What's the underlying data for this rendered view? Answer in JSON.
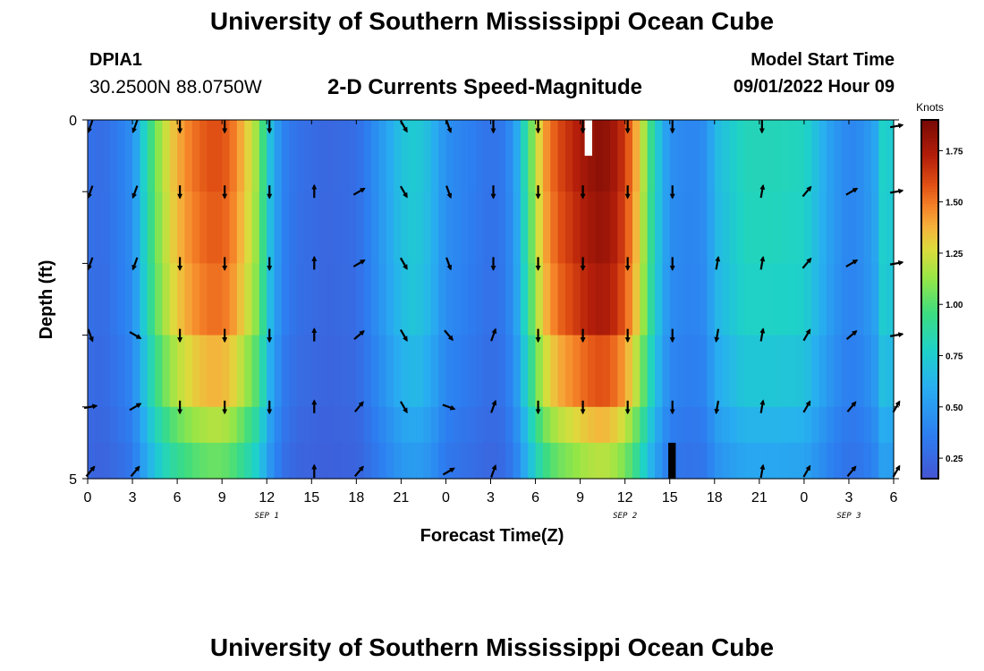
{
  "title_top": "University of Southern Mississippi Ocean Cube",
  "title_bottom": "University of Southern Mississippi Ocean Cube",
  "station": {
    "id": "DPIA1",
    "coords": "30.2500N  88.0750W"
  },
  "model_start": {
    "label": "Model Start Time",
    "value": "09/01/2022 Hour 09"
  },
  "chart_data": {
    "type": "heatmap",
    "title": "2-D Currents Speed-Magnitude",
    "xlabel": "Forecast Time(Z)",
    "ylabel": "Depth (ft)",
    "x_hours": [
      0,
      54
    ],
    "x_ticks": [
      0,
      3,
      6,
      9,
      12,
      15,
      18,
      21,
      24,
      27,
      30,
      33,
      36,
      39,
      42,
      45,
      48,
      51,
      54
    ],
    "x_tick_labels": [
      "0",
      "3",
      "6",
      "9",
      "12",
      "15",
      "18",
      "21",
      "0",
      "3",
      "6",
      "9",
      "12",
      "15",
      "18",
      "21",
      "0",
      "3",
      "6"
    ],
    "y_ticks": [
      0,
      1,
      2,
      3,
      4,
      5
    ],
    "y_tick_labels": [
      "0",
      "",
      "",
      "",
      "",
      "5"
    ],
    "date_labels": [
      {
        "text": "SEP 1",
        "x": 12
      },
      {
        "text": "SEP 2",
        "x": 36
      },
      {
        "text": "SEP 3",
        "x": 51
      }
    ],
    "colorbar": {
      "label": "Knots",
      "min": 0.15,
      "max": 1.9,
      "ticks": [
        0.25,
        0.5,
        0.75,
        1.0,
        1.25,
        1.5,
        1.75
      ],
      "tick_labels": [
        "0.25",
        "0.50",
        "0.75",
        "1.00",
        "1.25",
        "1.50",
        "1.75"
      ]
    },
    "speed_profile": {
      "hours": [
        0,
        1,
        2,
        3,
        3.7,
        4.5,
        5.5,
        6.5,
        7.5,
        8.5,
        9.5,
        10.5,
        11.5,
        12.2,
        13,
        14,
        16,
        18,
        19,
        20,
        21,
        22,
        23,
        24,
        25,
        26,
        27,
        28,
        28.7,
        29.5,
        30.5,
        31.5,
        32.5,
        33.5,
        34.5,
        35.5,
        36.5,
        37.2,
        38,
        39,
        40.5,
        41.5,
        42,
        44,
        46,
        48,
        49,
        50,
        51,
        52,
        53,
        53.5,
        54
      ],
      "speeds": [
        0.3,
        0.28,
        0.35,
        0.45,
        0.75,
        1.05,
        1.3,
        1.45,
        1.55,
        1.6,
        1.55,
        1.35,
        1.1,
        0.7,
        0.4,
        0.3,
        0.25,
        0.28,
        0.4,
        0.55,
        0.7,
        0.75,
        0.65,
        0.45,
        0.4,
        0.35,
        0.3,
        0.35,
        0.55,
        0.95,
        1.4,
        1.6,
        1.7,
        1.8,
        1.85,
        1.75,
        1.5,
        1.2,
        0.8,
        0.45,
        0.4,
        0.45,
        0.65,
        0.82,
        0.82,
        0.8,
        0.65,
        0.5,
        0.4,
        0.45,
        0.6,
        0.95,
        0.55
      ]
    },
    "layer_factors": [
      1.0,
      0.98,
      0.95,
      0.85,
      0.72,
      0.62
    ],
    "arrow_hours": [
      0,
      3,
      6,
      9,
      12,
      15,
      18,
      21,
      24,
      27,
      30,
      33,
      36,
      39,
      42,
      45,
      48,
      51,
      54
    ],
    "arrow_directions_deg": [
      [
        200,
        200,
        180,
        180,
        180,
        null,
        null,
        150,
        160,
        180,
        180,
        180,
        180,
        180,
        null,
        180,
        null,
        null,
        80
      ],
      [
        200,
        200,
        180,
        180,
        180,
        0,
        60,
        150,
        160,
        180,
        180,
        180,
        180,
        180,
        null,
        10,
        40,
        60,
        80
      ],
      [
        200,
        200,
        180,
        180,
        180,
        0,
        60,
        150,
        160,
        180,
        180,
        180,
        180,
        180,
        10,
        10,
        40,
        60,
        80
      ],
      [
        160,
        120,
        180,
        180,
        180,
        0,
        50,
        150,
        140,
        20,
        180,
        180,
        180,
        180,
        190,
        10,
        30,
        50,
        80
      ],
      [
        80,
        60,
        180,
        180,
        180,
        0,
        40,
        150,
        110,
        20,
        180,
        180,
        180,
        180,
        190,
        10,
        30,
        40,
        30
      ],
      [
        40,
        40,
        null,
        null,
        null,
        0,
        40,
        null,
        60,
        20,
        null,
        null,
        null,
        null,
        null,
        10,
        30,
        40,
        30
      ]
    ],
    "missing_cells": [
      {
        "hour": 33.3,
        "depth": 0,
        "color": "#ffffff"
      },
      {
        "hour": 38.9,
        "depth": 4.5,
        "color": "#000000"
      }
    ]
  }
}
